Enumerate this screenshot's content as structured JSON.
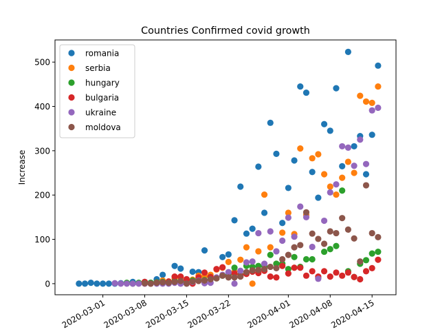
{
  "chart_data": {
    "type": "scatter",
    "title": "Countries Confirmed covid growth",
    "xlabel": "",
    "ylabel": "Increase",
    "x_axis": {
      "type": "date",
      "range": [
        "2020-02-22",
        "2020-04-19"
      ],
      "ticks": [
        "2020-03-01",
        "2020-03-08",
        "2020-03-15",
        "2020-03-22",
        "2020-04-01",
        "2020-04-08",
        "2020-04-15"
      ],
      "tick_label_rotation_deg": 30
    },
    "y_axis": {
      "range": [
        -25,
        550
      ],
      "ticks": [
        0,
        100,
        200,
        300,
        400,
        500
      ]
    },
    "grid": false,
    "legend_placement": "top-left",
    "series": [
      {
        "name": "romania",
        "color": "#1f77b4",
        "points": [
          [
            "2020-02-26",
            0
          ],
          [
            "2020-02-27",
            0
          ],
          [
            "2020-02-28",
            2
          ],
          [
            "2020-02-29",
            0
          ],
          [
            "2020-03-01",
            0
          ],
          [
            "2020-03-02",
            0
          ],
          [
            "2020-03-03",
            0
          ],
          [
            "2020-03-04",
            1
          ],
          [
            "2020-03-05",
            1
          ],
          [
            "2020-03-06",
            4
          ],
          [
            "2020-03-07",
            1
          ],
          [
            "2020-03-08",
            4
          ],
          [
            "2020-03-09",
            2
          ],
          [
            "2020-03-10",
            10
          ],
          [
            "2020-03-11",
            20
          ],
          [
            "2020-03-12",
            4
          ],
          [
            "2020-03-13",
            40
          ],
          [
            "2020-03-14",
            34
          ],
          [
            "2020-03-15",
            10
          ],
          [
            "2020-03-16",
            27
          ],
          [
            "2020-03-17",
            26
          ],
          [
            "2020-03-18",
            75
          ],
          [
            "2020-03-19",
            15
          ],
          [
            "2020-03-20",
            13
          ],
          [
            "2020-03-21",
            60
          ],
          [
            "2020-03-22",
            66
          ],
          [
            "2020-03-23",
            143
          ],
          [
            "2020-03-24",
            219
          ],
          [
            "2020-03-25",
            113
          ],
          [
            "2020-03-26",
            124
          ],
          [
            "2020-03-27",
            264
          ],
          [
            "2020-03-28",
            160
          ],
          [
            "2020-03-29",
            363
          ],
          [
            "2020-03-30",
            293
          ],
          [
            "2020-03-31",
            137
          ],
          [
            "2020-04-01",
            216
          ],
          [
            "2020-04-02",
            278
          ],
          [
            "2020-04-03",
            445
          ],
          [
            "2020-04-04",
            431
          ],
          [
            "2020-04-05",
            252
          ],
          [
            "2020-04-06",
            194
          ],
          [
            "2020-04-07",
            360
          ],
          [
            "2020-04-08",
            345
          ],
          [
            "2020-04-09",
            441
          ],
          [
            "2020-04-10",
            265
          ],
          [
            "2020-04-11",
            523
          ],
          [
            "2020-04-12",
            310
          ],
          [
            "2020-04-13",
            333
          ],
          [
            "2020-04-14",
            247
          ],
          [
            "2020-04-15",
            336
          ],
          [
            "2020-04-16",
            492
          ]
        ]
      },
      {
        "name": "serbia",
        "color": "#ff7f0e",
        "points": [
          [
            "2020-03-07",
            1
          ],
          [
            "2020-03-08",
            0
          ],
          [
            "2020-03-09",
            0
          ],
          [
            "2020-03-10",
            3
          ],
          [
            "2020-03-11",
            7
          ],
          [
            "2020-03-12",
            5
          ],
          [
            "2020-03-13",
            12
          ],
          [
            "2020-03-14",
            14
          ],
          [
            "2020-03-15",
            2
          ],
          [
            "2020-03-16",
            9
          ],
          [
            "2020-03-17",
            18
          ],
          [
            "2020-03-18",
            17
          ],
          [
            "2020-03-19",
            20
          ],
          [
            "2020-03-20",
            32
          ],
          [
            "2020-03-21",
            36
          ],
          [
            "2020-03-22",
            49
          ],
          [
            "2020-03-23",
            27
          ],
          [
            "2020-03-24",
            54
          ],
          [
            "2020-03-25",
            82
          ],
          [
            "2020-03-26",
            0
          ],
          [
            "2020-03-27",
            73
          ],
          [
            "2020-03-28",
            201
          ],
          [
            "2020-03-29",
            82
          ],
          [
            "2020-03-30",
            45
          ],
          [
            "2020-03-31",
            115
          ],
          [
            "2020-04-01",
            160
          ],
          [
            "2020-04-02",
            112
          ],
          [
            "2020-04-03",
            305
          ],
          [
            "2020-04-04",
            155
          ],
          [
            "2020-04-05",
            283
          ],
          [
            "2020-04-06",
            292
          ],
          [
            "2020-04-07",
            247
          ],
          [
            "2020-04-08",
            219
          ],
          [
            "2020-04-09",
            201
          ],
          [
            "2020-04-10",
            239
          ],
          [
            "2020-04-11",
            275
          ],
          [
            "2020-04-12",
            250
          ],
          [
            "2020-04-13",
            424
          ],
          [
            "2020-04-14",
            411
          ],
          [
            "2020-04-15",
            408
          ],
          [
            "2020-04-16",
            445
          ]
        ]
      },
      {
        "name": "hungary",
        "color": "#2ca02c",
        "points": [
          [
            "2020-03-05",
            2
          ],
          [
            "2020-03-06",
            0
          ],
          [
            "2020-03-07",
            2
          ],
          [
            "2020-03-08",
            3
          ],
          [
            "2020-03-09",
            2
          ],
          [
            "2020-03-10",
            3
          ],
          [
            "2020-03-11",
            4
          ],
          [
            "2020-03-12",
            3
          ],
          [
            "2020-03-13",
            6
          ],
          [
            "2020-03-14",
            5
          ],
          [
            "2020-03-15",
            2
          ],
          [
            "2020-03-16",
            7
          ],
          [
            "2020-03-17",
            11
          ],
          [
            "2020-03-18",
            8
          ],
          [
            "2020-03-19",
            15
          ],
          [
            "2020-03-20",
            12
          ],
          [
            "2020-03-21",
            18
          ],
          [
            "2020-03-22",
            19
          ],
          [
            "2020-03-23",
            36
          ],
          [
            "2020-03-24",
            20
          ],
          [
            "2020-03-25",
            40
          ],
          [
            "2020-03-26",
            38
          ],
          [
            "2020-03-27",
            40
          ],
          [
            "2020-03-28",
            39
          ],
          [
            "2020-03-29",
            65
          ],
          [
            "2020-03-30",
            45
          ],
          [
            "2020-03-31",
            45
          ],
          [
            "2020-04-01",
            33
          ],
          [
            "2020-04-02",
            60
          ],
          [
            "2020-04-03",
            38
          ],
          [
            "2020-04-04",
            55
          ],
          [
            "2020-04-05",
            55
          ],
          [
            "2020-04-06",
            13
          ],
          [
            "2020-04-07",
            72
          ],
          [
            "2020-04-08",
            78
          ],
          [
            "2020-04-09",
            85
          ],
          [
            "2020-04-10",
            210
          ],
          [
            "2020-04-11",
            28
          ],
          [
            "2020-04-12",
            15
          ],
          [
            "2020-04-13",
            45
          ],
          [
            "2020-04-14",
            53
          ],
          [
            "2020-04-15",
            68
          ],
          [
            "2020-04-16",
            72
          ]
        ]
      },
      {
        "name": "bulgaria",
        "color": "#d62728",
        "points": [
          [
            "2020-03-08",
            4
          ],
          [
            "2020-03-09",
            0
          ],
          [
            "2020-03-10",
            2
          ],
          [
            "2020-03-11",
            1
          ],
          [
            "2020-03-12",
            5
          ],
          [
            "2020-03-13",
            16
          ],
          [
            "2020-03-14",
            16
          ],
          [
            "2020-03-15",
            10
          ],
          [
            "2020-03-16",
            0
          ],
          [
            "2020-03-17",
            14
          ],
          [
            "2020-03-18",
            25
          ],
          [
            "2020-03-19",
            15
          ],
          [
            "2020-03-20",
            33
          ],
          [
            "2020-03-21",
            37
          ],
          [
            "2020-03-22",
            15
          ],
          [
            "2020-03-23",
            23
          ],
          [
            "2020-03-24",
            18
          ],
          [
            "2020-03-25",
            22
          ],
          [
            "2020-03-26",
            27
          ],
          [
            "2020-03-27",
            24
          ],
          [
            "2020-03-28",
            29
          ],
          [
            "2020-03-29",
            16
          ],
          [
            "2020-03-30",
            14
          ],
          [
            "2020-03-31",
            40
          ],
          [
            "2020-04-01",
            23
          ],
          [
            "2020-04-02",
            36
          ],
          [
            "2020-04-03",
            36
          ],
          [
            "2020-04-04",
            18
          ],
          [
            "2020-04-05",
            28
          ],
          [
            "2020-04-06",
            16
          ],
          [
            "2020-04-07",
            28
          ],
          [
            "2020-04-08",
            16
          ],
          [
            "2020-04-09",
            25
          ],
          [
            "2020-04-10",
            18
          ],
          [
            "2020-04-11",
            25
          ],
          [
            "2020-04-12",
            15
          ],
          [
            "2020-04-13",
            10
          ],
          [
            "2020-04-14",
            28
          ],
          [
            "2020-04-15",
            35
          ],
          [
            "2020-04-16",
            54
          ]
        ]
      },
      {
        "name": "ukraine",
        "color": "#9467bd",
        "points": [
          [
            "2020-03-03",
            1
          ],
          [
            "2020-03-04",
            0
          ],
          [
            "2020-03-05",
            0
          ],
          [
            "2020-03-06",
            0
          ],
          [
            "2020-03-07",
            0
          ],
          [
            "2020-03-08",
            0
          ],
          [
            "2020-03-09",
            0
          ],
          [
            "2020-03-10",
            0
          ],
          [
            "2020-03-11",
            0
          ],
          [
            "2020-03-12",
            0
          ],
          [
            "2020-03-13",
            2
          ],
          [
            "2020-03-14",
            0
          ],
          [
            "2020-03-15",
            0
          ],
          [
            "2020-03-16",
            4
          ],
          [
            "2020-03-17",
            7
          ],
          [
            "2020-03-18",
            1
          ],
          [
            "2020-03-19",
            2
          ],
          [
            "2020-03-20",
            14
          ],
          [
            "2020-03-21",
            20
          ],
          [
            "2020-03-22",
            26
          ],
          [
            "2020-03-23",
            0
          ],
          [
            "2020-03-24",
            29
          ],
          [
            "2020-03-25",
            48
          ],
          [
            "2020-03-26",
            50
          ],
          [
            "2020-03-27",
            114
          ],
          [
            "2020-03-28",
            45
          ],
          [
            "2020-03-29",
            118
          ],
          [
            "2020-03-30",
            73
          ],
          [
            "2020-03-31",
            97
          ],
          [
            "2020-04-01",
            149
          ],
          [
            "2020-04-02",
            106
          ],
          [
            "2020-04-03",
            174
          ],
          [
            "2020-04-04",
            150
          ],
          [
            "2020-04-05",
            83
          ],
          [
            "2020-04-06",
            11
          ],
          [
            "2020-04-07",
            142
          ],
          [
            "2020-04-08",
            206
          ],
          [
            "2020-04-09",
            224
          ],
          [
            "2020-04-10",
            310
          ],
          [
            "2020-04-11",
            307
          ],
          [
            "2020-04-12",
            266
          ],
          [
            "2020-04-13",
            325
          ],
          [
            "2020-04-14",
            270
          ],
          [
            "2020-04-15",
            391
          ],
          [
            "2020-04-16",
            397
          ]
        ]
      },
      {
        "name": "moldova",
        "color": "#8c564b",
        "points": [
          [
            "2020-03-08",
            1
          ],
          [
            "2020-03-09",
            0
          ],
          [
            "2020-03-10",
            2
          ],
          [
            "2020-03-11",
            3
          ],
          [
            "2020-03-12",
            2
          ],
          [
            "2020-03-13",
            4
          ],
          [
            "2020-03-14",
            6
          ],
          [
            "2020-03-15",
            0
          ],
          [
            "2020-03-16",
            5
          ],
          [
            "2020-03-17",
            6
          ],
          [
            "2020-03-18",
            7
          ],
          [
            "2020-03-19",
            10
          ],
          [
            "2020-03-20",
            12
          ],
          [
            "2020-03-21",
            18
          ],
          [
            "2020-03-22",
            14
          ],
          [
            "2020-03-23",
            14
          ],
          [
            "2020-03-24",
            16
          ],
          [
            "2020-03-25",
            26
          ],
          [
            "2020-03-26",
            30
          ],
          [
            "2020-03-27",
            31
          ],
          [
            "2020-03-28",
            33
          ],
          [
            "2020-03-29",
            38
          ],
          [
            "2020-03-30",
            35
          ],
          [
            "2020-03-31",
            55
          ],
          [
            "2020-04-01",
            65
          ],
          [
            "2020-04-02",
            82
          ],
          [
            "2020-04-03",
            87
          ],
          [
            "2020-04-04",
            161
          ],
          [
            "2020-04-05",
            113
          ],
          [
            "2020-04-06",
            101
          ],
          [
            "2020-04-07",
            90
          ],
          [
            "2020-04-08",
            118
          ],
          [
            "2020-04-09",
            114
          ],
          [
            "2020-04-10",
            148
          ],
          [
            "2020-04-11",
            122
          ],
          [
            "2020-04-12",
            102
          ],
          [
            "2020-04-13",
            50
          ],
          [
            "2020-04-14",
            222
          ],
          [
            "2020-04-15",
            114
          ],
          [
            "2020-04-16",
            105
          ]
        ]
      }
    ]
  }
}
